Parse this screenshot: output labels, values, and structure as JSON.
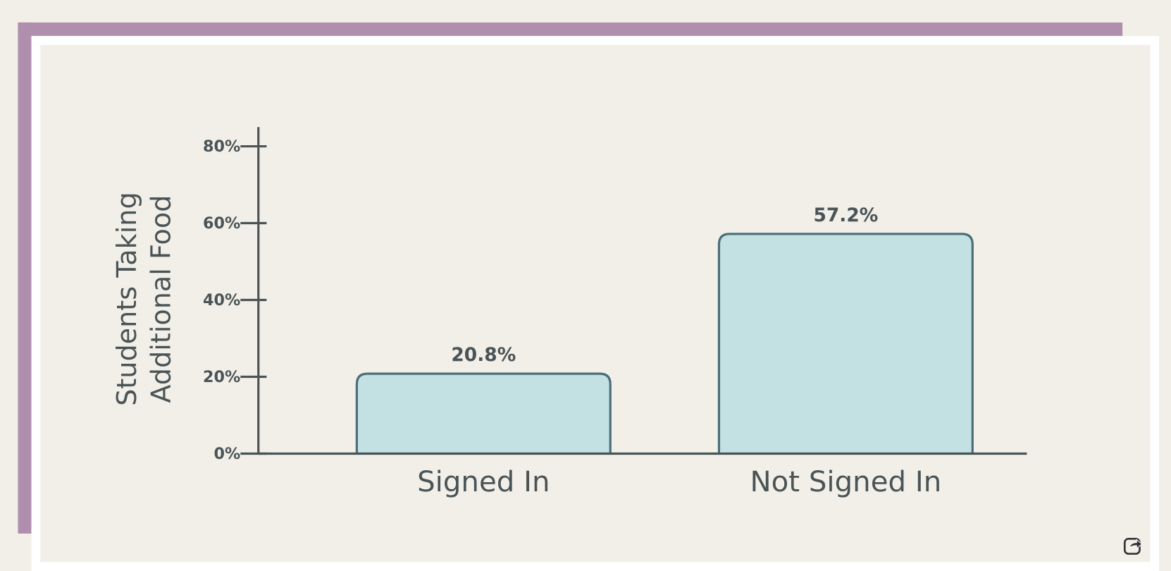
{
  "chart_data": {
    "type": "bar",
    "ylabel": [
      "Students Taking",
      "Additional Food"
    ],
    "categories": [
      "Signed In",
      "Not Signed In"
    ],
    "values": [
      20.8,
      57.2
    ],
    "value_labels": [
      "20.8%",
      "57.2%"
    ],
    "color": "#c3e0e3",
    "ylim": [
      0,
      85
    ],
    "yticks": [
      {
        "value": 0,
        "label": "0%"
      },
      {
        "value": 20,
        "label": "20%"
      },
      {
        "value": 40,
        "label": "40%"
      },
      {
        "value": 60,
        "label": "60%"
      },
      {
        "value": 80,
        "label": "80%"
      }
    ]
  }
}
